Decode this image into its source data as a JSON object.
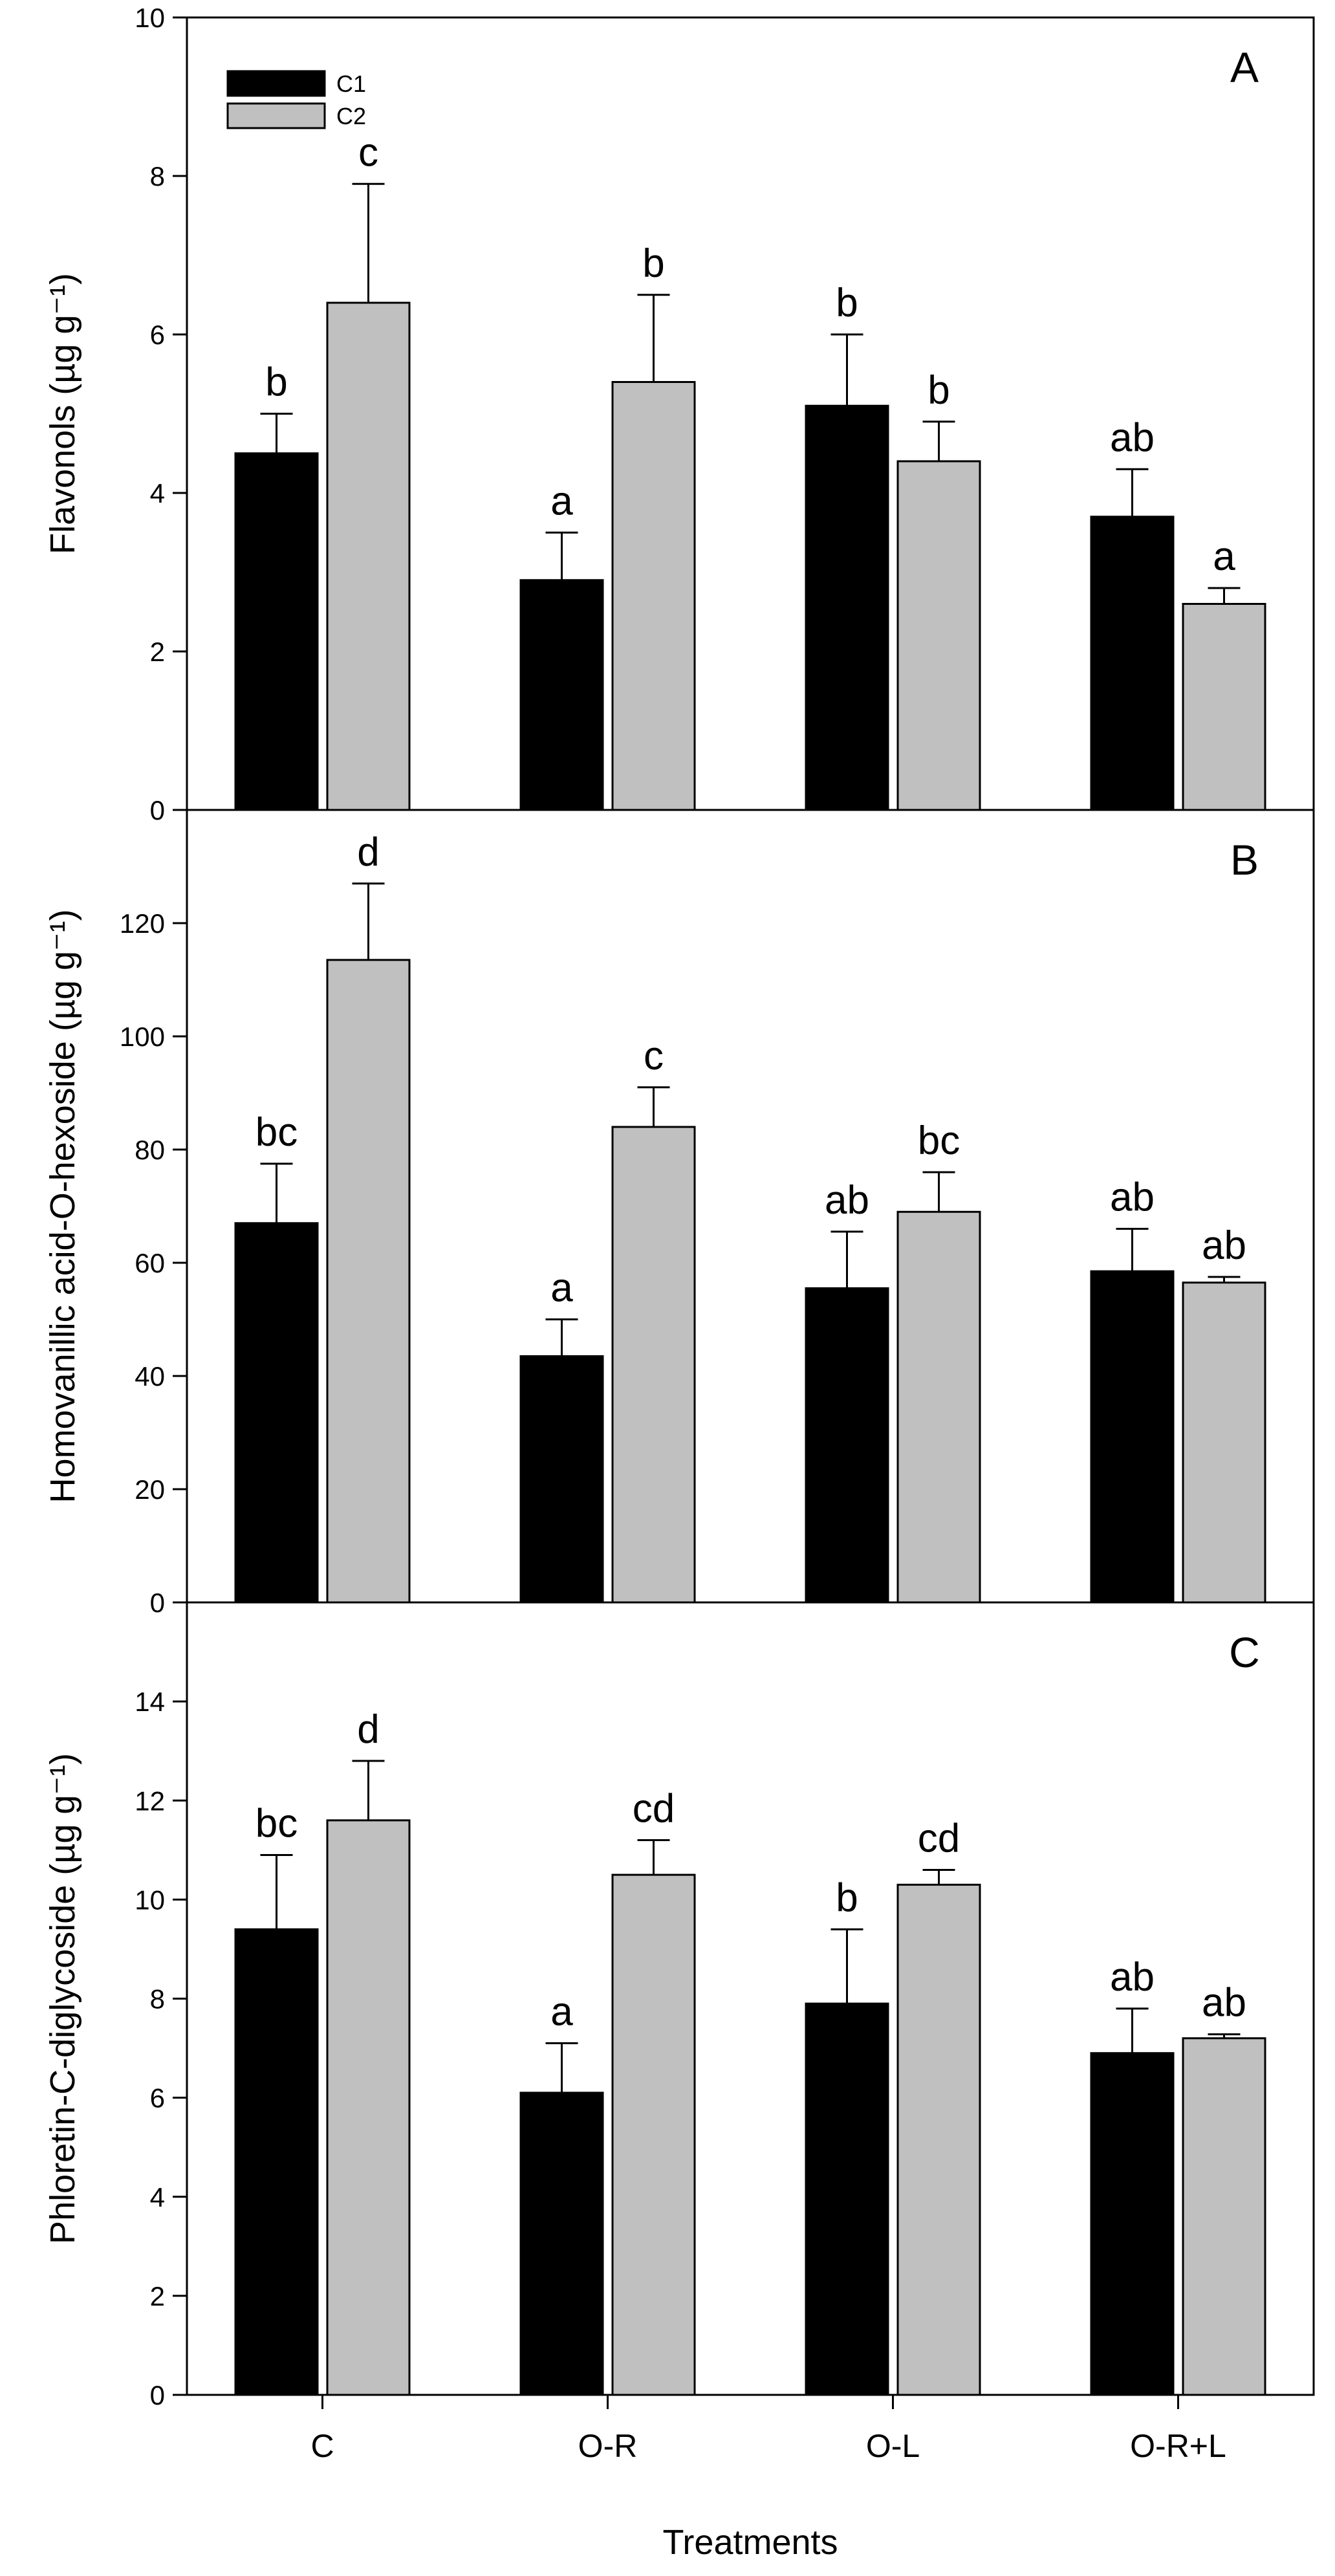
{
  "xlabel": "Treatments",
  "categories": [
    "C",
    "O-R",
    "O-L",
    "O-R+L"
  ],
  "legend": [
    {
      "name": "C1",
      "color": "#000000"
    },
    {
      "name": "C2",
      "color": "#c0c0c0"
    }
  ],
  "chart_data": [
    {
      "type": "bar",
      "panel": "A",
      "ylabel": "Flavonols (µg g⁻¹)",
      "ylim": [
        0,
        10
      ],
      "yticks": [
        0,
        2,
        4,
        6,
        8,
        10
      ],
      "categories": [
        "C",
        "O-R",
        "O-L",
        "O-R+L"
      ],
      "series": [
        {
          "name": "C1",
          "values": [
            4.5,
            2.9,
            5.1,
            3.7
          ],
          "errors": [
            0.5,
            0.6,
            0.9,
            0.6
          ],
          "labels": [
            "b",
            "a",
            "b",
            "ab"
          ]
        },
        {
          "name": "C2",
          "values": [
            6.4,
            5.4,
            4.4,
            2.6
          ],
          "errors": [
            1.5,
            1.1,
            0.5,
            0.2
          ],
          "labels": [
            "c",
            "b",
            "b",
            "a"
          ]
        }
      ]
    },
    {
      "type": "bar",
      "panel": "B",
      "ylabel": "Homovanillic acid-O-hexoside (µg g⁻¹)",
      "ylim": [
        0,
        140
      ],
      "yticks": [
        0,
        20,
        40,
        60,
        80,
        100,
        120
      ],
      "categories": [
        "C",
        "O-R",
        "O-L",
        "O-R+L"
      ],
      "series": [
        {
          "name": "C1",
          "values": [
            67,
            43.5,
            55.5,
            58.5
          ],
          "errors": [
            10.5,
            6.5,
            10,
            7.5
          ],
          "labels": [
            "bc",
            "a",
            "ab",
            "ab"
          ]
        },
        {
          "name": "C2",
          "values": [
            113.5,
            84,
            69,
            56.5
          ],
          "errors": [
            13.5,
            7,
            7,
            1
          ],
          "labels": [
            "d",
            "c",
            "bc",
            "ab"
          ]
        }
      ]
    },
    {
      "type": "bar",
      "panel": "C",
      "ylabel": "Phloretin-C-diglycoside (µg g⁻¹)",
      "ylim": [
        0,
        16
      ],
      "yticks": [
        0,
        2,
        4,
        6,
        8,
        10,
        12,
        14
      ],
      "categories": [
        "C",
        "O-R",
        "O-L",
        "O-R+L"
      ],
      "series": [
        {
          "name": "C1",
          "values": [
            9.4,
            6.1,
            7.9,
            6.9
          ],
          "errors": [
            1.5,
            1.0,
            1.5,
            0.9
          ],
          "labels": [
            "bc",
            "a",
            "b",
            "ab"
          ]
        },
        {
          "name": "C2",
          "values": [
            11.6,
            10.5,
            10.3,
            7.2
          ],
          "errors": [
            1.2,
            0.7,
            0.3,
            0.08
          ],
          "labels": [
            "d",
            "cd",
            "cd",
            "ab"
          ]
        }
      ]
    }
  ]
}
